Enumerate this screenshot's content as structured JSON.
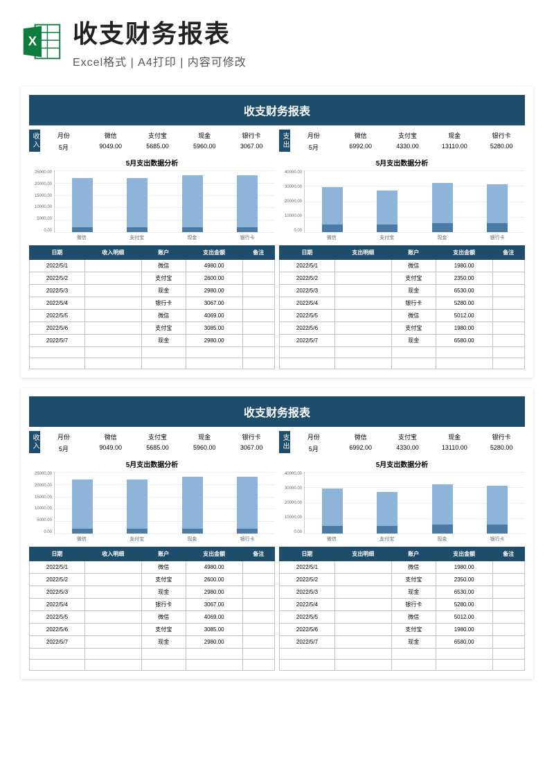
{
  "header": {
    "main_title": "收支财务报表",
    "subtitle": "Excel格式 | A4打印 | 内容可修改"
  },
  "colors": {
    "banner": "#1e4d6b",
    "bar_light": "#8fb4d9",
    "bar_dark": "#4a7ba6",
    "border": "#b8c5d0",
    "grid": "#eeeeee"
  },
  "report": {
    "banner_title": "收支财务报表",
    "income": {
      "badge": "收入",
      "headers": [
        "月份",
        "微信",
        "支付宝",
        "现金",
        "银行卡"
      ],
      "values": [
        "5月",
        "9049.00",
        "5685.00",
        "5960.00",
        "3067.00"
      ]
    },
    "expense": {
      "badge": "支出",
      "headers": [
        "月份",
        "微信",
        "支付宝",
        "现金",
        "银行卡"
      ],
      "values": [
        "5月",
        "6992.00",
        "4330.00",
        "13110.00",
        "5280.00"
      ]
    },
    "chart_left": {
      "title": "5月支出数据分析",
      "ymax": 25000,
      "yticks": [
        "25000.00",
        "20000.00",
        "15000.00",
        "10000.00",
        "5000.00",
        "0.00"
      ],
      "categories": [
        "微信",
        "支付宝",
        "现金",
        "银行卡"
      ],
      "series": [
        {
          "light": 20000,
          "dark": 2000
        },
        {
          "light": 20000,
          "dark": 2000
        },
        {
          "light": 21000,
          "dark": 2000
        },
        {
          "light": 21000,
          "dark": 2000
        }
      ]
    },
    "chart_right": {
      "title": "5月支出数据分析",
      "ymax": 40000,
      "yticks": [
        "40000.00",
        "30000.00",
        "20000.00",
        "10000.00",
        "0.00"
      ],
      "categories": [
        "微信",
        "支付宝",
        "现金",
        "银行卡"
      ],
      "series": [
        {
          "light": 24000,
          "dark": 5000
        },
        {
          "light": 22000,
          "dark": 5000
        },
        {
          "light": 26000,
          "dark": 6000
        },
        {
          "light": 25000,
          "dark": 6000
        }
      ]
    },
    "table_left": {
      "headers": [
        "日期",
        "收入明细",
        "账户",
        "支出金额",
        "备注"
      ],
      "rows": [
        [
          "2022/5/1",
          "",
          "微信",
          "4980.00",
          ""
        ],
        [
          "2022/5/2",
          "",
          "支付宝",
          "2600.00",
          ""
        ],
        [
          "2022/5/3",
          "",
          "现金",
          "2980.00",
          ""
        ],
        [
          "2022/5/4",
          "",
          "银行卡",
          "3067.00",
          ""
        ],
        [
          "2022/5/5",
          "",
          "微信",
          "4069.00",
          ""
        ],
        [
          "2022/5/6",
          "",
          "支付宝",
          "3085.00",
          ""
        ],
        [
          "2022/5/7",
          "",
          "现金",
          "2980.00",
          ""
        ],
        [
          "",
          "",
          "",
          "",
          ""
        ],
        [
          "",
          "",
          "",
          "",
          ""
        ]
      ]
    },
    "table_right": {
      "headers": [
        "日期",
        "支出明细",
        "账户",
        "支出金额",
        "备注"
      ],
      "rows": [
        [
          "2022/5/1",
          "",
          "微信",
          "1980.00",
          ""
        ],
        [
          "2022/5/2",
          "",
          "支付宝",
          "2350.00",
          ""
        ],
        [
          "2022/5/3",
          "",
          "现金",
          "6530.00",
          ""
        ],
        [
          "2022/5/4",
          "",
          "银行卡",
          "5280.00",
          ""
        ],
        [
          "2022/5/5",
          "",
          "微信",
          "5012.00",
          ""
        ],
        [
          "2022/5/6",
          "",
          "支付宝",
          "1980.00",
          ""
        ],
        [
          "2022/5/7",
          "",
          "现金",
          "6580.00",
          ""
        ],
        [
          "",
          "",
          "",
          "",
          ""
        ],
        [
          "",
          "",
          "",
          "",
          ""
        ]
      ]
    }
  }
}
